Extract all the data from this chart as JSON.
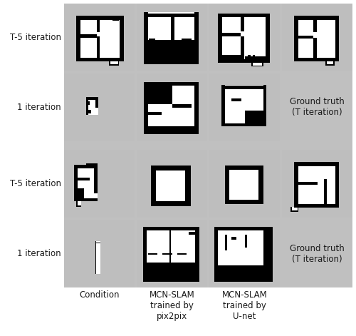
{
  "fig_width": 5.0,
  "fig_height": 4.71,
  "dpi": 100,
  "bg_color": "#c0c0c0",
  "cell_bg_color": "#bebebe",
  "white_color": "#ffffff",
  "black_color": "#000000",
  "text_color": "#1a1a1a",
  "font_size_label": 8.5,
  "font_size_col": 8.5,
  "row_labels": [
    "T-5 iteration",
    "1 iteration",
    "T-5 iteration",
    "1 iteration"
  ],
  "col_labels": [
    "Condition",
    "MCN-SLAM\ntrained by\npix2pix",
    "MCN-SLAM\ntrained by\nU-net"
  ],
  "ground_truth_label": "Ground truth\n(T iteration)",
  "grid_rows": 4,
  "grid_cols": 4
}
